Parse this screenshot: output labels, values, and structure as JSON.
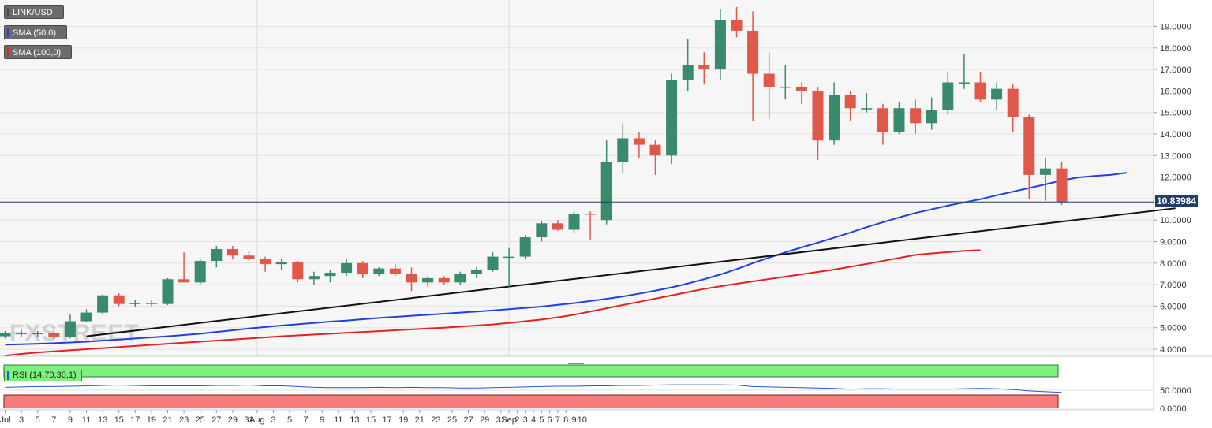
{
  "legend": {
    "pair": "LINK/USD",
    "sma50": "SMA (50,0)",
    "sma100": "SMA (100,0)",
    "rsi": "RSI (14,70,30,1)"
  },
  "watermark": "FXSTREET",
  "current_price_label": "10.83984",
  "colors": {
    "up": "#3a8a6c",
    "down": "#e0584a",
    "sma50": "#2040e0",
    "sma100": "#e82020",
    "trendline": "#111111",
    "rsi_overbought": "#7ef07e",
    "rsi_oversold": "#f97a7a",
    "rsi_line": "#3050e0",
    "price_badge": "#1f3f66"
  },
  "chart_data": {
    "type": "candlestick",
    "price_axis": {
      "range": [
        3.6,
        19.9
      ],
      "ticks": [
        "4.0000",
        "5.0000",
        "6.0000",
        "7.0000",
        "8.0000",
        "9.0000",
        "10.0000",
        "11.0000",
        "12.0000",
        "13.0000",
        "14.0000",
        "15.0000",
        "16.0000",
        "17.0000",
        "18.0000",
        "19.0000"
      ],
      "tick_values": [
        4,
        5,
        6,
        7,
        8,
        9,
        10,
        11,
        12,
        13,
        14,
        15,
        16,
        17,
        18,
        19
      ]
    },
    "rsi_axis": {
      "ticks": [
        "0.0000",
        "50.0000"
      ],
      "tick_values": [
        0,
        50
      ],
      "overbought": 70,
      "oversold": 30
    },
    "x_axis": {
      "labels": [
        "Jul",
        "3",
        "5",
        "7",
        "9",
        "11",
        "13",
        "15",
        "17",
        "19",
        "21",
        "23",
        "25",
        "27",
        "29",
        "31",
        "Aug",
        "3",
        "5",
        "7",
        "9",
        "11",
        "13",
        "15",
        "17",
        "19",
        "21",
        "23",
        "25",
        "27",
        "29",
        "31",
        "Sep",
        "2",
        "3",
        "4",
        "5",
        "6",
        "7",
        "8",
        "9",
        "10"
      ],
      "label_index": [
        0,
        1,
        2,
        3,
        4,
        5,
        6,
        7,
        8,
        9,
        10,
        11,
        12,
        13,
        14,
        15,
        15.5,
        16.5,
        17.5,
        18.5,
        19.5,
        20.5,
        21.5,
        22.5,
        23.5,
        24.5,
        25.5,
        26.5,
        27.5,
        28.5,
        29.5,
        30.5,
        31.0,
        31.5,
        32,
        32.5,
        33,
        33.5,
        34,
        34.5,
        35,
        35.5
      ]
    },
    "candles": [
      {
        "o": 4.6,
        "h": 4.85,
        "l": 4.5,
        "c": 4.75
      },
      {
        "o": 4.75,
        "h": 4.9,
        "l": 4.55,
        "c": 4.7
      },
      {
        "o": 4.7,
        "h": 4.85,
        "l": 4.55,
        "c": 4.75
      },
      {
        "o": 4.75,
        "h": 4.9,
        "l": 4.45,
        "c": 4.55
      },
      {
        "o": 4.55,
        "h": 5.6,
        "l": 4.5,
        "c": 5.3
      },
      {
        "o": 5.3,
        "h": 5.85,
        "l": 5.25,
        "c": 5.7
      },
      {
        "o": 5.7,
        "h": 6.55,
        "l": 5.6,
        "c": 6.5
      },
      {
        "o": 6.5,
        "h": 6.6,
        "l": 6.0,
        "c": 6.1
      },
      {
        "o": 6.1,
        "h": 6.3,
        "l": 5.95,
        "c": 6.15
      },
      {
        "o": 6.15,
        "h": 6.3,
        "l": 6.0,
        "c": 6.1
      },
      {
        "o": 6.1,
        "h": 7.3,
        "l": 6.05,
        "c": 7.25
      },
      {
        "o": 7.25,
        "h": 8.5,
        "l": 7.1,
        "c": 7.1
      },
      {
        "o": 7.1,
        "h": 8.2,
        "l": 7.0,
        "c": 8.1
      },
      {
        "o": 8.1,
        "h": 8.8,
        "l": 7.8,
        "c": 8.65
      },
      {
        "o": 8.65,
        "h": 8.8,
        "l": 8.2,
        "c": 8.35
      },
      {
        "o": 8.35,
        "h": 8.55,
        "l": 8.1,
        "c": 8.2
      },
      {
        "o": 8.2,
        "h": 8.3,
        "l": 7.6,
        "c": 7.95
      },
      {
        "o": 7.95,
        "h": 8.2,
        "l": 7.7,
        "c": 8.05
      },
      {
        "o": 8.05,
        "h": 8.1,
        "l": 7.1,
        "c": 7.25
      },
      {
        "o": 7.25,
        "h": 7.6,
        "l": 7.0,
        "c": 7.4
      },
      {
        "o": 7.4,
        "h": 7.7,
        "l": 7.1,
        "c": 7.55
      },
      {
        "o": 7.55,
        "h": 8.2,
        "l": 7.4,
        "c": 8.0
      },
      {
        "o": 8.0,
        "h": 8.1,
        "l": 7.3,
        "c": 7.5
      },
      {
        "o": 7.5,
        "h": 7.8,
        "l": 7.4,
        "c": 7.75
      },
      {
        "o": 7.75,
        "h": 7.95,
        "l": 7.4,
        "c": 7.5
      },
      {
        "o": 7.5,
        "h": 7.8,
        "l": 6.7,
        "c": 7.1
      },
      {
        "o": 7.1,
        "h": 7.4,
        "l": 6.9,
        "c": 7.3
      },
      {
        "o": 7.3,
        "h": 7.4,
        "l": 7.0,
        "c": 7.1
      },
      {
        "o": 7.1,
        "h": 7.6,
        "l": 7.0,
        "c": 7.5
      },
      {
        "o": 7.5,
        "h": 7.8,
        "l": 7.3,
        "c": 7.7
      },
      {
        "o": 7.7,
        "h": 8.5,
        "l": 7.6,
        "c": 8.3
      },
      {
        "o": 8.3,
        "h": 8.7,
        "l": 6.9,
        "c": 8.3
      },
      {
        "o": 8.3,
        "h": 9.3,
        "l": 8.2,
        "c": 9.2
      },
      {
        "o": 9.2,
        "h": 9.95,
        "l": 9.0,
        "c": 9.85
      },
      {
        "o": 9.85,
        "h": 10.0,
        "l": 9.5,
        "c": 9.55
      },
      {
        "o": 9.55,
        "h": 10.4,
        "l": 9.4,
        "c": 10.3
      },
      {
        "o": 10.3,
        "h": 10.4,
        "l": 9.1,
        "c": 10.25
      },
      {
        "o": 10.0,
        "h": 13.7,
        "l": 9.8,
        "c": 12.7
      },
      {
        "o": 12.7,
        "h": 14.5,
        "l": 12.2,
        "c": 13.8
      },
      {
        "o": 13.8,
        "h": 14.1,
        "l": 12.9,
        "c": 13.5
      },
      {
        "o": 13.5,
        "h": 13.7,
        "l": 12.1,
        "c": 13.0
      },
      {
        "o": 13.0,
        "h": 16.8,
        "l": 12.6,
        "c": 16.5
      },
      {
        "o": 16.5,
        "h": 18.4,
        "l": 16.0,
        "c": 17.2
      },
      {
        "o": 17.2,
        "h": 17.8,
        "l": 16.3,
        "c": 17.0
      },
      {
        "o": 17.0,
        "h": 19.8,
        "l": 16.5,
        "c": 19.3
      },
      {
        "o": 19.3,
        "h": 19.9,
        "l": 18.5,
        "c": 18.8
      },
      {
        "o": 18.8,
        "h": 19.7,
        "l": 14.6,
        "c": 16.8
      },
      {
        "o": 16.8,
        "h": 17.8,
        "l": 14.7,
        "c": 16.2
      },
      {
        "o": 16.2,
        "h": 17.2,
        "l": 15.6,
        "c": 16.2
      },
      {
        "o": 16.2,
        "h": 16.4,
        "l": 15.4,
        "c": 16.0
      },
      {
        "o": 16.0,
        "h": 16.2,
        "l": 12.8,
        "c": 13.7
      },
      {
        "o": 13.7,
        "h": 16.4,
        "l": 13.5,
        "c": 15.8
      },
      {
        "o": 15.8,
        "h": 16.0,
        "l": 14.6,
        "c": 15.2
      },
      {
        "o": 15.2,
        "h": 15.9,
        "l": 15.0,
        "c": 15.2
      },
      {
        "o": 15.2,
        "h": 15.4,
        "l": 13.5,
        "c": 14.1
      },
      {
        "o": 14.1,
        "h": 15.5,
        "l": 14.0,
        "c": 15.2
      },
      {
        "o": 15.2,
        "h": 15.6,
        "l": 14.0,
        "c": 14.5
      },
      {
        "o": 14.5,
        "h": 15.7,
        "l": 14.2,
        "c": 15.1
      },
      {
        "o": 15.1,
        "h": 16.9,
        "l": 14.9,
        "c": 16.4
      },
      {
        "o": 16.4,
        "h": 17.7,
        "l": 16.1,
        "c": 16.4
      },
      {
        "o": 16.4,
        "h": 16.9,
        "l": 15.5,
        "c": 15.6
      },
      {
        "o": 15.6,
        "h": 16.4,
        "l": 15.1,
        "c": 16.1
      },
      {
        "o": 16.1,
        "h": 16.3,
        "l": 14.1,
        "c": 14.8
      },
      {
        "o": 14.8,
        "h": 14.9,
        "l": 11.0,
        "c": 12.1
      },
      {
        "o": 12.1,
        "h": 12.9,
        "l": 10.9,
        "c": 12.4
      },
      {
        "o": 12.4,
        "h": 12.7,
        "l": 10.7,
        "c": 10.84
      }
    ],
    "sma50": [
      4.21,
      4.23,
      4.25,
      4.28,
      4.31,
      4.35,
      4.4,
      4.45,
      4.5,
      4.55,
      4.6,
      4.66,
      4.72,
      4.8,
      4.88,
      4.96,
      5.03,
      5.1,
      5.16,
      5.22,
      5.28,
      5.33,
      5.39,
      5.45,
      5.5,
      5.55,
      5.6,
      5.65,
      5.7,
      5.75,
      5.8,
      5.86,
      5.92,
      5.98,
      6.06,
      6.14,
      6.24,
      6.34,
      6.45,
      6.58,
      6.72,
      6.87,
      7.05,
      7.25,
      7.47,
      7.72,
      8.0,
      8.25,
      8.5,
      8.73,
      8.95,
      9.18,
      9.42,
      9.67,
      9.9,
      10.12,
      10.33,
      10.5,
      10.67,
      10.82,
      10.97,
      11.15,
      11.32,
      11.49,
      11.66,
      11.84,
      11.98,
      12.05,
      12.1,
      12.2
    ],
    "sma100": [
      3.7,
      3.78,
      3.85,
      3.9,
      3.95,
      4.0,
      4.05,
      4.1,
      4.15,
      4.2,
      4.25,
      4.3,
      4.35,
      4.4,
      4.45,
      4.5,
      4.55,
      4.6,
      4.64,
      4.68,
      4.72,
      4.76,
      4.8,
      4.84,
      4.88,
      4.92,
      4.96,
      5.0,
      5.05,
      5.1,
      5.15,
      5.22,
      5.3,
      5.38,
      5.48,
      5.6,
      5.75,
      5.9,
      6.05,
      6.2,
      6.35,
      6.5,
      6.65,
      6.8,
      6.92,
      7.04,
      7.15,
      7.26,
      7.37,
      7.48,
      7.59,
      7.7,
      7.83,
      7.96,
      8.1,
      8.24,
      8.38,
      8.45,
      8.51,
      8.57,
      8.6
    ],
    "trendline": {
      "start": [
        5.0,
        4.6
      ],
      "end": [
        72.0,
        10.55
      ]
    },
    "rsi": [
      58,
      59,
      60,
      60,
      61,
      62,
      63,
      64,
      63,
      62,
      62,
      62,
      62,
      63,
      63,
      64,
      62,
      62,
      60,
      58,
      57,
      57,
      57,
      58,
      57,
      58,
      57,
      57,
      56,
      56,
      57,
      58,
      59,
      60,
      61,
      61,
      62,
      62,
      63,
      63,
      64,
      65,
      65,
      65,
      65,
      64,
      60,
      59,
      58,
      57,
      56,
      55,
      53,
      54,
      54,
      53,
      53,
      53,
      53,
      54,
      55,
      54,
      52,
      48,
      46,
      44
    ]
  }
}
